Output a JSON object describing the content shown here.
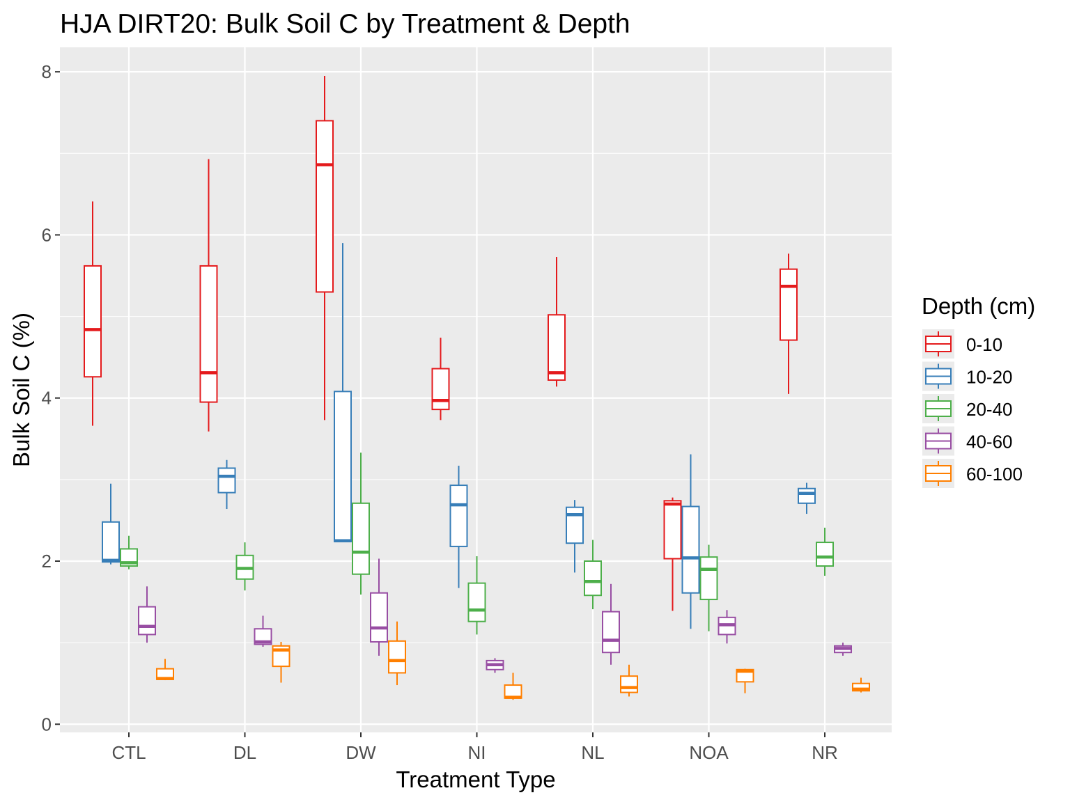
{
  "chart_data": {
    "type": "boxplot",
    "title": "HJA DIRT20: Bulk Soil C by Treatment & Depth",
    "xlabel": "Treatment Type",
    "ylabel": "Bulk Soil C (%)",
    "ylim": [
      -0.1,
      8.3
    ],
    "yticks": [
      0,
      2,
      4,
      6,
      8
    ],
    "grid": true,
    "categories": [
      "CTL",
      "DL",
      "DW",
      "NI",
      "NL",
      "NOA",
      "NR"
    ],
    "legend": {
      "title": "Depth (cm)",
      "position": "right"
    },
    "series": [
      {
        "name": "0-10",
        "color": "#E41A1C",
        "boxes": [
          {
            "category": "CTL",
            "min": 3.66,
            "q1": 4.26,
            "median": 4.84,
            "q3": 5.62,
            "max": 6.41
          },
          {
            "category": "DL",
            "min": 3.59,
            "q1": 3.95,
            "median": 4.31,
            "q3": 5.62,
            "max": 6.93
          },
          {
            "category": "DW",
            "min": 3.73,
            "q1": 5.3,
            "median": 6.86,
            "q3": 7.4,
            "max": 7.95
          },
          {
            "category": "NI",
            "min": 3.73,
            "q1": 3.86,
            "median": 3.97,
            "q3": 4.36,
            "max": 4.74
          },
          {
            "category": "NL",
            "min": 4.14,
            "q1": 4.22,
            "median": 4.31,
            "q3": 5.02,
            "max": 5.73
          },
          {
            "category": "NOA",
            "min": 1.39,
            "q1": 2.03,
            "median": 2.7,
            "q3": 2.74,
            "max": 2.78
          },
          {
            "category": "NR",
            "min": 4.05,
            "q1": 4.71,
            "median": 5.37,
            "q3": 5.58,
            "max": 5.77
          }
        ]
      },
      {
        "name": "10-20",
        "color": "#377EB8",
        "boxes": [
          {
            "category": "CTL",
            "min": 1.96,
            "q1": 1.99,
            "median": 2.01,
            "q3": 2.48,
            "max": 2.95
          },
          {
            "category": "DL",
            "min": 2.64,
            "q1": 2.84,
            "median": 3.04,
            "q3": 3.14,
            "max": 3.24
          },
          {
            "category": "DW",
            "min": 2.24,
            "q1": 2.24,
            "median": 2.25,
            "q3": 4.08,
            "max": 5.9
          },
          {
            "category": "NI",
            "min": 1.67,
            "q1": 2.18,
            "median": 2.69,
            "q3": 2.93,
            "max": 3.17
          },
          {
            "category": "NL",
            "min": 1.86,
            "q1": 2.22,
            "median": 2.57,
            "q3": 2.66,
            "max": 2.75
          },
          {
            "category": "NOA",
            "min": 1.17,
            "q1": 1.61,
            "median": 2.04,
            "q3": 2.67,
            "max": 3.31
          },
          {
            "category": "NR",
            "min": 2.58,
            "q1": 2.71,
            "median": 2.83,
            "q3": 2.89,
            "max": 2.96
          }
        ]
      },
      {
        "name": "20-40",
        "color": "#4DAF4A",
        "boxes": [
          {
            "category": "CTL",
            "min": 1.9,
            "q1": 1.94,
            "median": 1.98,
            "q3": 2.15,
            "max": 2.31
          },
          {
            "category": "DL",
            "min": 1.64,
            "q1": 1.78,
            "median": 1.91,
            "q3": 2.07,
            "max": 2.23
          },
          {
            "category": "DW",
            "min": 1.59,
            "q1": 1.84,
            "median": 2.11,
            "q3": 2.71,
            "max": 3.33
          },
          {
            "category": "NI",
            "min": 1.1,
            "q1": 1.26,
            "median": 1.4,
            "q3": 1.73,
            "max": 2.06
          },
          {
            "category": "NL",
            "min": 1.41,
            "q1": 1.58,
            "median": 1.75,
            "q3": 2.0,
            "max": 2.26
          },
          {
            "category": "NOA",
            "min": 1.14,
            "q1": 1.53,
            "median": 1.9,
            "q3": 2.05,
            "max": 2.2
          },
          {
            "category": "NR",
            "min": 1.82,
            "q1": 1.94,
            "median": 2.05,
            "q3": 2.23,
            "max": 2.41
          }
        ]
      },
      {
        "name": "40-60",
        "color": "#984EA3",
        "boxes": [
          {
            "category": "CTL",
            "min": 1.0,
            "q1": 1.1,
            "median": 1.2,
            "q3": 1.44,
            "max": 1.69
          },
          {
            "category": "DL",
            "min": 0.95,
            "q1": 0.98,
            "median": 1.01,
            "q3": 1.17,
            "max": 1.33
          },
          {
            "category": "DW",
            "min": 0.84,
            "q1": 1.01,
            "median": 1.18,
            "q3": 1.61,
            "max": 2.03
          },
          {
            "category": "NI",
            "min": 0.63,
            "q1": 0.67,
            "median": 0.73,
            "q3": 0.78,
            "max": 0.81
          },
          {
            "category": "NL",
            "min": 0.73,
            "q1": 0.88,
            "median": 1.03,
            "q3": 1.38,
            "max": 1.72
          },
          {
            "category": "NOA",
            "min": 0.99,
            "q1": 1.1,
            "median": 1.22,
            "q3": 1.31,
            "max": 1.4
          },
          {
            "category": "NR",
            "min": 0.84,
            "q1": 0.88,
            "median": 0.93,
            "q3": 0.96,
            "max": 1.0
          }
        ]
      },
      {
        "name": "60-100",
        "color": "#FF7F00",
        "boxes": [
          {
            "category": "CTL",
            "min": 0.54,
            "q1": 0.55,
            "median": 0.56,
            "q3": 0.68,
            "max": 0.8
          },
          {
            "category": "DL",
            "min": 0.51,
            "q1": 0.71,
            "median": 0.91,
            "q3": 0.96,
            "max": 1.01
          },
          {
            "category": "DW",
            "min": 0.48,
            "q1": 0.63,
            "median": 0.78,
            "q3": 1.02,
            "max": 1.26
          },
          {
            "category": "NI",
            "min": 0.3,
            "q1": 0.32,
            "median": 0.33,
            "q3": 0.48,
            "max": 0.63
          },
          {
            "category": "NL",
            "min": 0.34,
            "q1": 0.39,
            "median": 0.45,
            "q3": 0.59,
            "max": 0.73
          },
          {
            "category": "NOA",
            "min": 0.38,
            "q1": 0.52,
            "median": 0.65,
            "q3": 0.67,
            "max": 0.68
          },
          {
            "category": "NR",
            "min": 0.39,
            "q1": 0.41,
            "median": 0.43,
            "q3": 0.5,
            "max": 0.57
          }
        ]
      }
    ]
  }
}
